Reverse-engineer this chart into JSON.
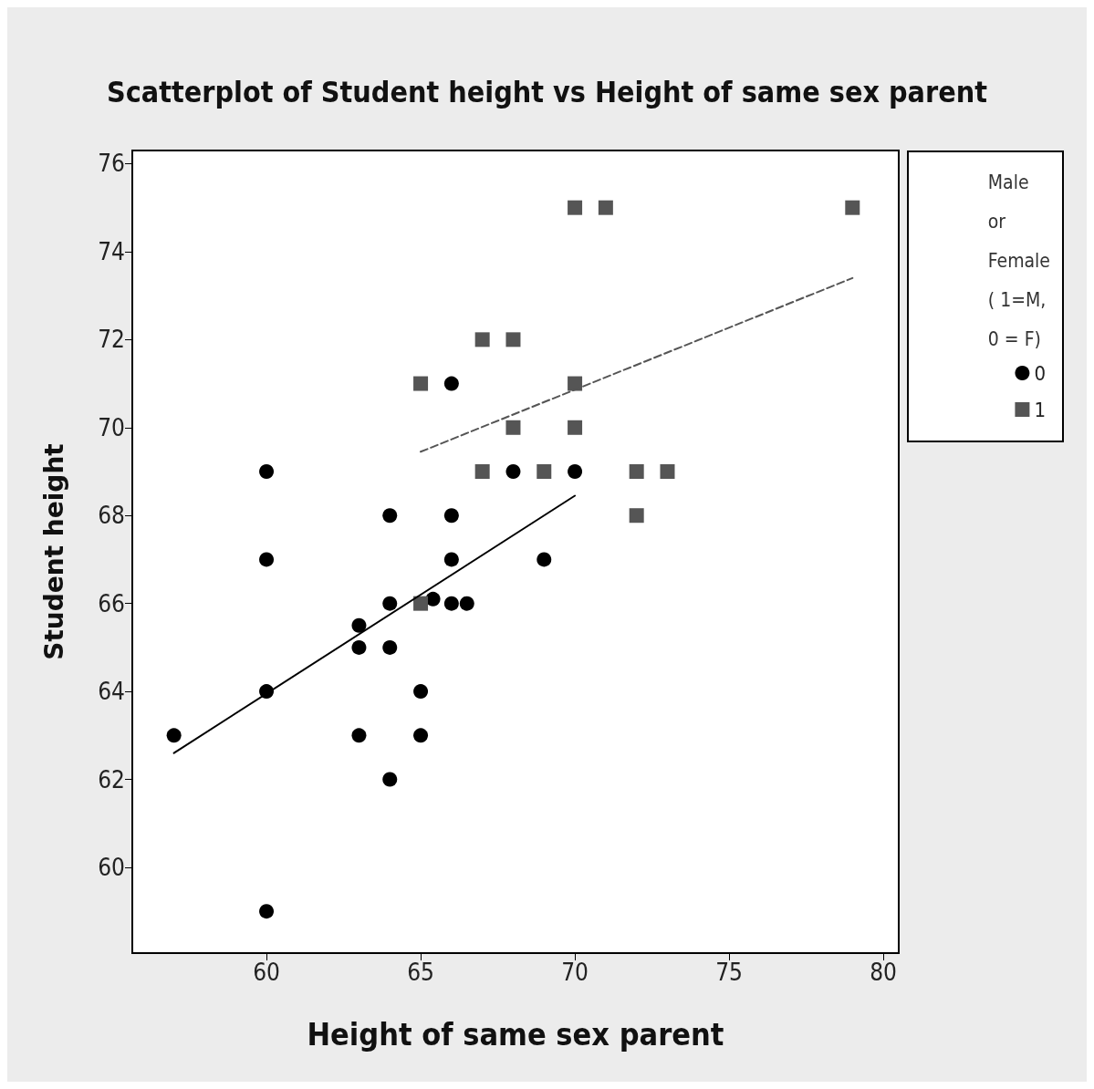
{
  "chart_data": {
    "type": "scatter",
    "title": "Scatterplot of Student height vs Height of same sex parent",
    "xlabel": "Height of same sex parent",
    "ylabel": "Student height",
    "legend_title": "Male\nor\nFemale\n( 1=M,\n0 = F)",
    "legend": "top right",
    "grid": false,
    "xlim": [
      55.65,
      80.5
    ],
    "xticks": [
      60,
      65,
      70,
      75,
      80
    ],
    "ylim": [
      58.05,
      76.3
    ],
    "yticks": [
      60,
      62,
      64,
      66,
      68,
      70,
      72,
      74,
      76
    ],
    "series": [
      {
        "name": "0",
        "color": "#000000",
        "marker": "circle",
        "x": [
          57,
          60,
          60,
          60,
          60,
          63,
          63,
          63,
          64,
          64,
          64,
          64,
          65,
          65,
          65.4,
          66,
          66,
          66,
          66,
          66.5,
          68,
          69,
          70
        ],
        "values": [
          63,
          69,
          67,
          64,
          59,
          65.5,
          65,
          63,
          68,
          66,
          65,
          62,
          64,
          63,
          66.1,
          71,
          68,
          67,
          66,
          66,
          69,
          67,
          69
        ]
      },
      {
        "name": "1",
        "color": "#555555",
        "marker": "square",
        "x": [
          65,
          65,
          67,
          67,
          68,
          68,
          69,
          70,
          70,
          70,
          71,
          72,
          72,
          73,
          79
        ],
        "values": [
          71,
          66,
          72,
          69,
          72,
          70,
          69,
          75,
          71,
          70,
          75,
          69,
          68,
          69,
          75
        ]
      },
      {
        "type": "line",
        "color": "#000000",
        "marker": "none",
        "line_style": "solid",
        "x": [
          57,
          70
        ],
        "values": [
          62.6,
          68.45
        ]
      },
      {
        "type": "line",
        "color": "#555555",
        "marker": "none",
        "line_style": "dashed",
        "x": [
          65,
          79
        ],
        "values": [
          69.45,
          73.4
        ]
      }
    ]
  }
}
